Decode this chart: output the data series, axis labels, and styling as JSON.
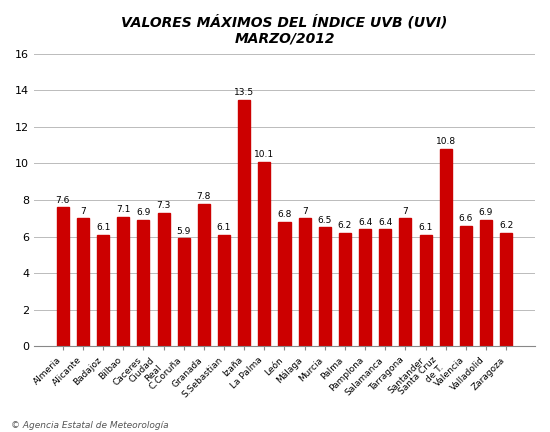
{
  "categories": [
    "Almeria",
    "Alicante",
    "Badajoz",
    "Bilbao",
    "Caceres",
    "Ciudad\nReal",
    "C.Coruña",
    "Granada",
    "S.Sebastian",
    "Izaña",
    "La Palma",
    "León",
    "Málaga",
    "Murcia",
    "Palma",
    "Pamplona",
    "Salamanca",
    "Tarragona",
    "Santander",
    "Santa Cruz\nde T.",
    "Valencia",
    "Valladolid",
    "Zaragoza"
  ],
  "values": [
    7.6,
    7.0,
    6.1,
    7.1,
    6.9,
    7.3,
    5.9,
    7.8,
    6.1,
    13.5,
    10.1,
    6.8,
    7.0,
    6.5,
    6.2,
    6.4,
    6.4,
    7.0,
    6.1,
    10.8,
    6.6,
    6.9,
    6.2
  ],
  "bar_color": "#cc0000",
  "title": "VALORES MÁXIMOS DEL ÍNDICE UVB (UVI)\nMARZO/2012",
  "ylim": [
    0,
    16
  ],
  "yticks": [
    0,
    2,
    4,
    6,
    8,
    10,
    12,
    14,
    16
  ],
  "background_color": "#ffffff",
  "grid_color": "#bbbbbb",
  "xlabel_fontsize": 6.5,
  "title_fontsize": 10,
  "value_fontsize": 6.5,
  "ytick_fontsize": 8,
  "footer_text": "© Agencia Estatal de Meteorología"
}
